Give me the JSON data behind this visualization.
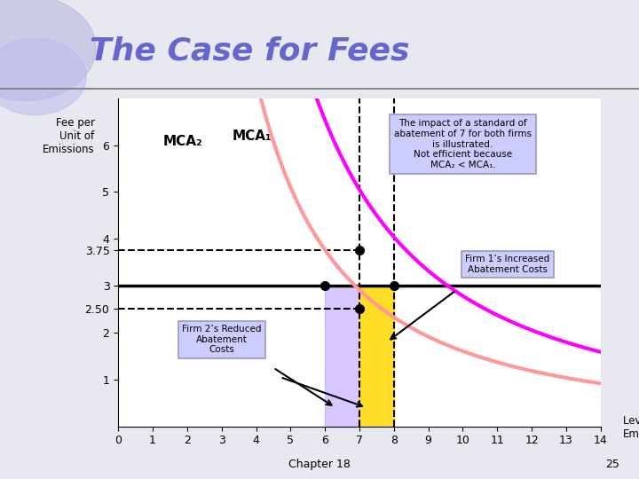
{
  "title": "The Case for Fees",
  "title_color": "#6666CC",
  "title_fontsize": 26,
  "xlabel_bottom": "Chapter 18",
  "page_number": "25",
  "xlim": [
    0,
    14
  ],
  "ylim": [
    0,
    7
  ],
  "xticks": [
    0,
    1,
    2,
    3,
    4,
    5,
    6,
    7,
    8,
    9,
    10,
    11,
    12,
    13,
    14
  ],
  "yticks": [
    1,
    2,
    3,
    4,
    5,
    6
  ],
  "extra_yticks": [
    2.5,
    3.75
  ],
  "fee_line_y": 3.0,
  "dashed_y1": 3.75,
  "dashed_y2": 2.5,
  "MCA1_color": "#FF00FF",
  "MCA2_color": "#FF9999",
  "MCA1_label": "MCA₁",
  "MCA2_label": "MCA₂",
  "plot_bg_color": "#FFFFFF",
  "purple_shade": "#BB99FF",
  "yellow_shade": "#FFD700",
  "info_box_text": "The impact of a standard of\nabatement of 7 for both firms\nis illustrated.\nNot efficient because\nMCA₂ < MCA₁.",
  "info_box_color": "#CCCCFF",
  "firm2_box_text": "Firm 2’s Reduced\nAbatement\nCosts",
  "firm2_box_color": "#CCCCFF",
  "firm1_box_text": "Firm 1’s Increased\nAbatement Costs",
  "firm1_box_color": "#CCCCFF",
  "dot_color": "#000000",
  "slide_bg": "#E8E8F0",
  "mca1_a": 130.7,
  "mca1_b": 1.672,
  "mca2_a": 75.0,
  "mca2_b": 1.67
}
